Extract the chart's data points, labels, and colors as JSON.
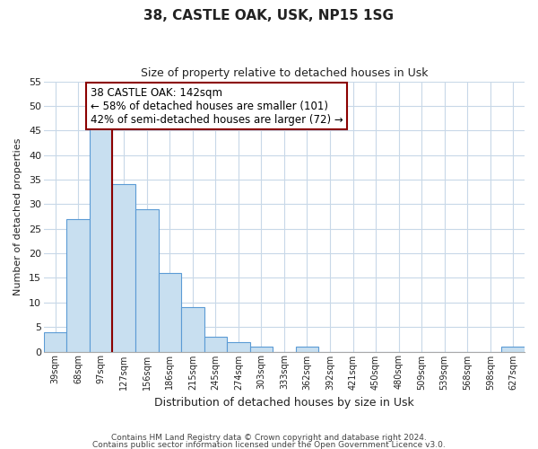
{
  "title": "38, CASTLE OAK, USK, NP15 1SG",
  "subtitle": "Size of property relative to detached houses in Usk",
  "xlabel": "Distribution of detached houses by size in Usk",
  "ylabel": "Number of detached properties",
  "bin_labels": [
    "39sqm",
    "68sqm",
    "97sqm",
    "127sqm",
    "156sqm",
    "186sqm",
    "215sqm",
    "245sqm",
    "274sqm",
    "303sqm",
    "333sqm",
    "362sqm",
    "392sqm",
    "421sqm",
    "450sqm",
    "480sqm",
    "509sqm",
    "539sqm",
    "568sqm",
    "598sqm",
    "627sqm"
  ],
  "bar_values": [
    4,
    27,
    46,
    34,
    29,
    16,
    9,
    3,
    2,
    1,
    0,
    1,
    0,
    0,
    0,
    0,
    0,
    0,
    0,
    0,
    1
  ],
  "bar_color": "#c8dff0",
  "bar_edge_color": "#5b9bd5",
  "ylim": [
    0,
    55
  ],
  "yticks": [
    0,
    5,
    10,
    15,
    20,
    25,
    30,
    35,
    40,
    45,
    50,
    55
  ],
  "property_line_index": 3,
  "property_line_color": "#8b0000",
  "annotation_title": "38 CASTLE OAK: 142sqm",
  "annotation_line1": "← 58% of detached houses are smaller (101)",
  "annotation_line2": "42% of semi-detached houses are larger (72) →",
  "annotation_box_color": "#ffffff",
  "annotation_box_edge": "#8b0000",
  "footer_line1": "Contains HM Land Registry data © Crown copyright and database right 2024.",
  "footer_line2": "Contains public sector information licensed under the Open Government Licence v3.0.",
  "background_color": "#ffffff",
  "grid_color": "#c8d8e8"
}
